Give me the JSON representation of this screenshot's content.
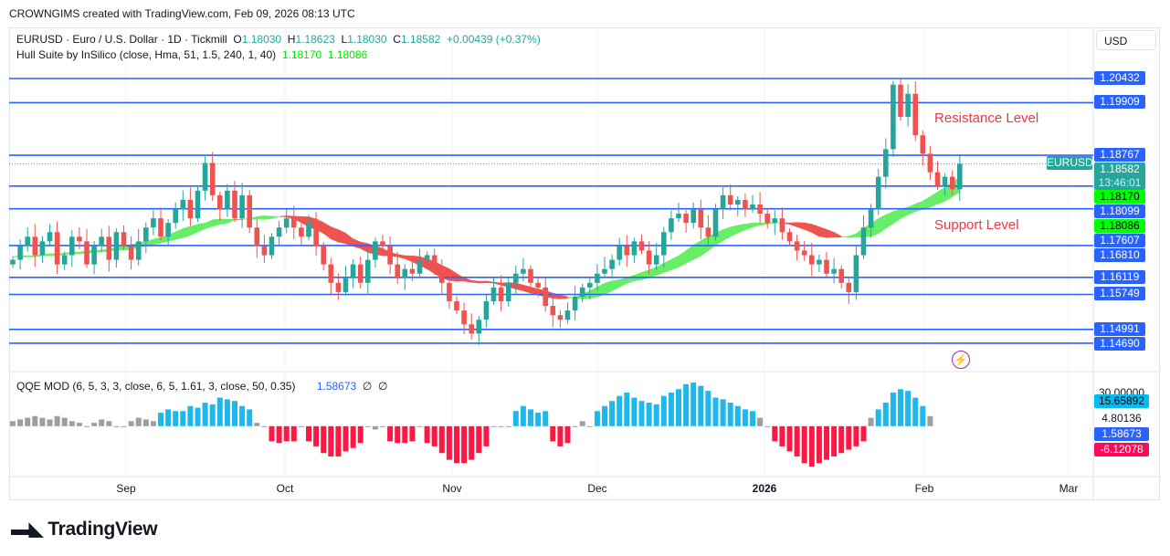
{
  "credit": "CROWNGIMS created with TradingView.com, Feb 09, 2026 08:13 UTC",
  "legend": {
    "symbol": "EURUSD · Euro / U.S. Dollar · 1D · Tickmill",
    "o_label": "O",
    "o": "1.18030",
    "h_label": "H",
    "h": "1.18623",
    "l_label": "L",
    "l": "1.18030",
    "c_label": "C",
    "c": "1.18582",
    "change": "+0.00439 (+0.37%)",
    "hull": "Hull Suite by InSilico (close, Hma, 51, 1.5, 240, 1, 40)",
    "hull_v1": "1.18170",
    "hull_v2": "1.18086",
    "qqe": "QQE MOD (6, 5, 3, 3, close, 6, 5, 1.61, 3, close, 50, 0.35)",
    "qqe_v": "1.58673",
    "qqe_na1": "∅",
    "qqe_na2": "∅"
  },
  "currency": "USD",
  "annotations": {
    "resistance": "Resistance Level",
    "support": "Support Level"
  },
  "colors": {
    "up": "#26a69a",
    "down": "#ef5350",
    "level": "#2962ff",
    "hull_up": "#66ee66",
    "hull_down": "#ef5350",
    "qqe_up": "#1fb8ec",
    "qqe_down": "#ff1744",
    "qqe_neutral": "#9e9e9e"
  },
  "chart_data": {
    "type": "candlestick",
    "symbol": "EURUSD",
    "interval": "1D",
    "x_tick_labels": [
      "Sep",
      "Oct",
      "Nov",
      "Dec",
      "2026",
      "Feb",
      "Mar"
    ],
    "closes": [
      1.165,
      1.168,
      1.17,
      1.166,
      1.169,
      1.171,
      1.164,
      1.166,
      1.17,
      1.169,
      1.164,
      1.168,
      1.17,
      1.165,
      1.171,
      1.168,
      1.165,
      1.169,
      1.172,
      1.174,
      1.17,
      1.173,
      1.176,
      1.178,
      1.174,
      1.18,
      1.186,
      1.179,
      1.176,
      1.18,
      1.174,
      1.179,
      1.172,
      1.168,
      1.166,
      1.17,
      1.172,
      1.174,
      1.172,
      1.17,
      1.173,
      1.168,
      1.164,
      1.16,
      1.158,
      1.161,
      1.164,
      1.16,
      1.165,
      1.169,
      1.168,
      1.164,
      1.161,
      1.163,
      1.162,
      1.165,
      1.166,
      1.163,
      1.16,
      1.156,
      1.154,
      1.151,
      1.149,
      1.152,
      1.156,
      1.159,
      1.156,
      1.16,
      1.162,
      1.163,
      1.16,
      1.159,
      1.155,
      1.153,
      1.152,
      1.154,
      1.157,
      1.159,
      1.16,
      1.162,
      1.163,
      1.165,
      1.168,
      1.166,
      1.169,
      1.167,
      1.164,
      1.166,
      1.171,
      1.174,
      1.175,
      1.173,
      1.176,
      1.172,
      1.17,
      1.176,
      1.179,
      1.177,
      1.178,
      1.176,
      1.177,
      1.175,
      1.173,
      1.174,
      1.171,
      1.169,
      1.167,
      1.166,
      1.164,
      1.165,
      1.162,
      1.163,
      1.16,
      1.158,
      1.166,
      1.172,
      1.176,
      1.183,
      1.189,
      1.203,
      1.196,
      1.201,
      1.192,
      1.188,
      1.184,
      1.181,
      1.183,
      1.1803,
      1.18582
    ],
    "levels": [
      1.20432,
      1.19909,
      1.18767,
      1.18099,
      1.17607,
      1.1681,
      1.16119,
      1.15749,
      1.14991,
      1.1469
    ],
    "last_price": 1.18582,
    "countdown": "13:46:01",
    "last_label": "EURUSD",
    "hull_values": [
      1.1817,
      1.18086
    ],
    "qqe": {
      "values": [
        3,
        4,
        5,
        6,
        5,
        4,
        6,
        5,
        3,
        2,
        0,
        2,
        4,
        3,
        0,
        0,
        3,
        5,
        4,
        3,
        8,
        10,
        9,
        9,
        12,
        11,
        14,
        13,
        17,
        16,
        15,
        12,
        10,
        2,
        0,
        -9,
        -10,
        -9,
        -9,
        0,
        -9,
        -12,
        -16,
        -18,
        -18,
        -15,
        -13,
        -10,
        0,
        -2,
        0,
        -9,
        -10,
        -10,
        -9,
        0,
        -10,
        -12,
        -16,
        -20,
        -22,
        -22,
        -20,
        -16,
        -12,
        0,
        0,
        0,
        9,
        12,
        10,
        8,
        9,
        -9,
        -12,
        -10,
        0,
        3,
        0,
        9,
        12,
        15,
        18,
        20,
        17,
        15,
        14,
        13,
        18,
        20,
        22,
        25,
        26,
        24,
        21,
        17,
        16,
        14,
        12,
        10,
        9,
        5,
        0,
        -9,
        -12,
        -15,
        -18,
        -22,
        -24,
        -22,
        -20,
        -18,
        -16,
        -14,
        -12,
        -9,
        5,
        10,
        14,
        20,
        22,
        21,
        17,
        12,
        6
      ],
      "axis_labels": [
        "30.00000",
        "15.65892",
        "4.80136",
        "1.58673",
        "-6.12078"
      ]
    }
  }
}
